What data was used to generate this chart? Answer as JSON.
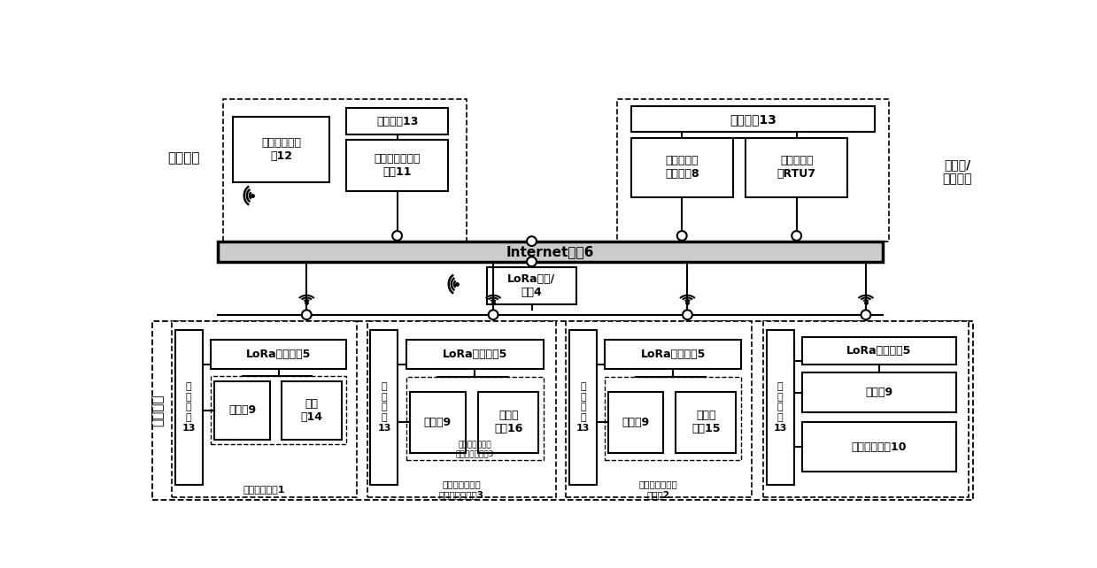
{
  "bg": "#ffffff",
  "labels": {
    "yuanwei": "运维人员",
    "dianli": "电力沟道",
    "gongyue": "供电和/\n或负载侧",
    "internet": "Internet网络6",
    "lora_gw": "LoRa网关/\n基站4",
    "supply13": "供电模块13",
    "supply13_right": "供电模块13",
    "remote12": "远程移动监控\n端12",
    "center11": "远程监控中心计\n算机11",
    "sanbuxing8": "三相不平衡\n调节装置8",
    "rtu7": "远程终端装\n置RTU7",
    "lora5": "LoRa节点模块5",
    "danjian9": "单片机9",
    "chuanganqi14": "传感\n器14",
    "wenducs16": "温度传\n感器16",
    "wenducs15": "温度传\n感器15",
    "zhixing10": "智能执行机构10",
    "env1": "环境监测模块1",
    "cable3_label": "电缆中间接头运\n行状态监测模块3",
    "cable2_label": "电缆运行状态监\n测模块2",
    "supply_tall": "供\n电\n模\n块\n13"
  }
}
